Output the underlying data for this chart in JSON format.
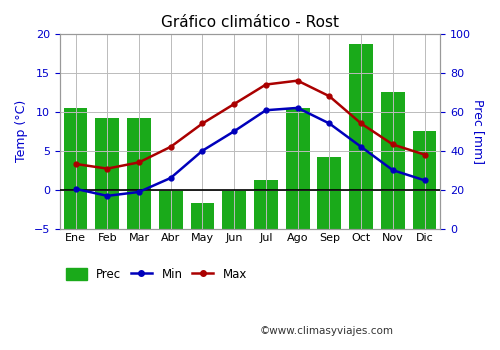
{
  "title": "Gráfico climático - Rost",
  "months": [
    "Ene",
    "Feb",
    "Mar",
    "Abr",
    "May",
    "Jun",
    "Jul",
    "Ago",
    "Sep",
    "Oct",
    "Nov",
    "Dic"
  ],
  "prec": [
    62,
    57,
    57,
    20,
    13,
    20,
    25,
    62,
    37,
    95,
    70,
    50
  ],
  "temp_min": [
    0.1,
    -0.8,
    -0.3,
    1.5,
    5.0,
    7.5,
    10.2,
    10.5,
    8.5,
    5.5,
    2.5,
    1.2
  ],
  "temp_max": [
    3.3,
    2.7,
    3.5,
    5.5,
    8.5,
    11.0,
    13.5,
    14.0,
    12.0,
    8.5,
    5.8,
    4.5
  ],
  "bar_color": "#1aaa1a",
  "min_color": "#0000bb",
  "max_color": "#aa0000",
  "temp_ylim": [
    -5,
    20
  ],
  "prec_ylim": [
    0,
    100
  ],
  "temp_yticks": [
    -5,
    0,
    5,
    10,
    15,
    20
  ],
  "prec_yticks": [
    0,
    20,
    40,
    60,
    80,
    100
  ],
  "ylabel_left": "Temp (°C)",
  "ylabel_right": "Prec [mm]",
  "watermark": "©www.climasyviajes.com",
  "legend_prec": "Prec",
  "legend_min": "Min",
  "legend_max": "Max",
  "bg_color": "#ffffff",
  "grid_color": "#bbbbbb"
}
